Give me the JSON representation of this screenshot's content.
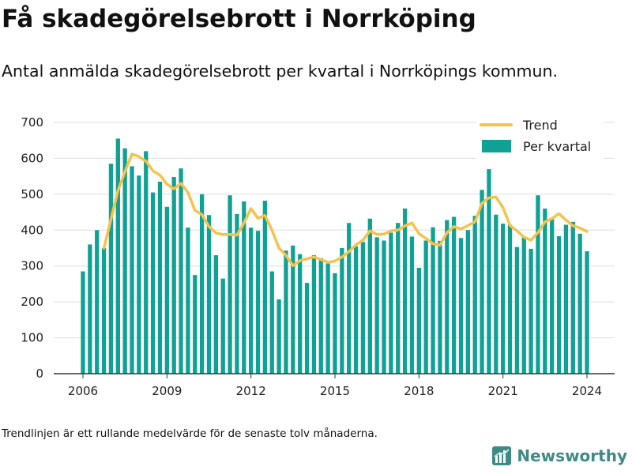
{
  "title": "Få skadegörelsebrott i Norrköping",
  "subtitle": "Antal anmälda skadegörelsebrott per kvartal i Norrköpings kommun.",
  "footnote": "Trendlinjen är ett rullande medelvärde för de senaste tolv månaderna.",
  "brand": "Newsworthy",
  "colors": {
    "bar": "#10a195",
    "trend": "#f6c24e",
    "grid": "#dddddd",
    "axis": "#333333",
    "brand": "#3f8a86"
  },
  "chart_data": {
    "type": "bar",
    "xlabel": "",
    "ylabel": "",
    "ylim": [
      0,
      700
    ],
    "yticks": [
      0,
      100,
      200,
      300,
      400,
      500,
      600,
      700
    ],
    "xticks": [
      2006,
      2009,
      2012,
      2015,
      2018,
      2021,
      2024
    ],
    "legend_position": "top-right",
    "x": [
      "2006-Q1",
      "2006-Q2",
      "2006-Q3",
      "2006-Q4",
      "2007-Q1",
      "2007-Q2",
      "2007-Q3",
      "2007-Q4",
      "2008-Q1",
      "2008-Q2",
      "2008-Q3",
      "2008-Q4",
      "2009-Q1",
      "2009-Q2",
      "2009-Q3",
      "2009-Q4",
      "2010-Q1",
      "2010-Q2",
      "2010-Q3",
      "2010-Q4",
      "2011-Q1",
      "2011-Q2",
      "2011-Q3",
      "2011-Q4",
      "2012-Q1",
      "2012-Q2",
      "2012-Q3",
      "2012-Q4",
      "2013-Q1",
      "2013-Q2",
      "2013-Q3",
      "2013-Q4",
      "2014-Q1",
      "2014-Q2",
      "2014-Q3",
      "2014-Q4",
      "2015-Q1",
      "2015-Q2",
      "2015-Q3",
      "2015-Q4",
      "2016-Q1",
      "2016-Q2",
      "2016-Q3",
      "2016-Q4",
      "2017-Q1",
      "2017-Q2",
      "2017-Q3",
      "2017-Q4",
      "2018-Q1",
      "2018-Q2",
      "2018-Q3",
      "2018-Q4",
      "2019-Q1",
      "2019-Q2",
      "2019-Q3",
      "2019-Q4",
      "2020-Q1",
      "2020-Q2",
      "2020-Q3",
      "2020-Q4",
      "2021-Q1",
      "2021-Q2",
      "2021-Q3",
      "2021-Q4",
      "2022-Q1",
      "2022-Q2",
      "2022-Q3",
      "2022-Q4",
      "2023-Q1",
      "2023-Q2",
      "2023-Q3",
      "2023-Q4",
      "2024-Q1"
    ],
    "series": [
      {
        "name": "Per kvartal",
        "type": "bar",
        "values": [
          285,
          360,
          400,
          350,
          585,
          655,
          628,
          578,
          552,
          620,
          505,
          535,
          465,
          548,
          572,
          407,
          275,
          500,
          442,
          330,
          265,
          497,
          445,
          480,
          407,
          398,
          482,
          285,
          207,
          343,
          357,
          333,
          253,
          330,
          322,
          307,
          280,
          350,
          420,
          355,
          367,
          432,
          380,
          371,
          393,
          420,
          460,
          382,
          295,
          371,
          408,
          370,
          428,
          437,
          378,
          400,
          440,
          512,
          570,
          443,
          418,
          415,
          353,
          380,
          348,
          497,
          460,
          434,
          383,
          415,
          423,
          390,
          341
        ]
      },
      {
        "name": "Trend",
        "type": "line",
        "values": [
          null,
          null,
          null,
          350,
          430,
          510,
          563,
          612,
          605,
          592,
          565,
          553,
          528,
          515,
          530,
          505,
          455,
          443,
          410,
          392,
          388,
          388,
          386,
          420,
          460,
          433,
          441,
          400,
          350,
          330,
          301,
          315,
          320,
          325,
          318,
          310,
          314,
          325,
          340,
          359,
          372,
          398,
          388,
          389,
          398,
          400,
          412,
          420,
          390,
          377,
          362,
          358,
          393,
          410,
          403,
          413,
          423,
          475,
          490,
          492,
          463,
          413,
          398,
          380,
          372,
          393,
          423,
          432,
          446,
          428,
          412,
          406,
          396
        ]
      }
    ]
  }
}
